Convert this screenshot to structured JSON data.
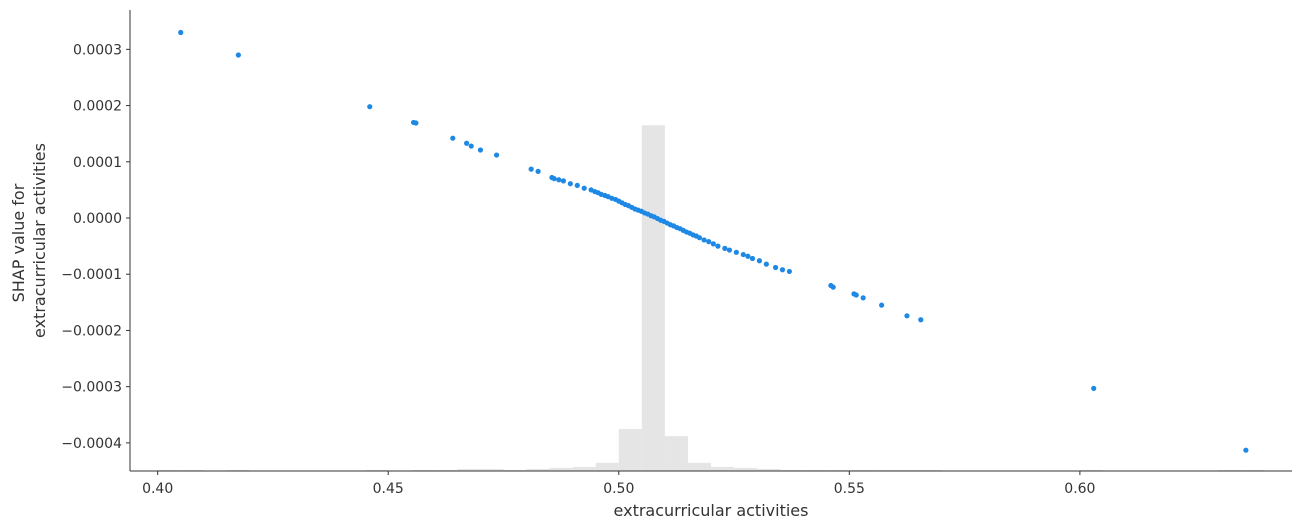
{
  "chart_data": {
    "type": "scatter",
    "xlabel": "extracurricular activities",
    "ylabel_lines": [
      "SHAP value for",
      "extracurricular activities"
    ],
    "xlim": [
      0.394,
      0.646
    ],
    "ylim": [
      -0.00045,
      0.00037
    ],
    "x_ticks": [
      0.4,
      0.45,
      0.5,
      0.55,
      0.6
    ],
    "x_tick_labels": [
      "0.40",
      "0.45",
      "0.50",
      "0.55",
      "0.60"
    ],
    "y_ticks": [
      0.0003,
      0.0002,
      0.0001,
      0.0,
      -0.0001,
      -0.0002,
      -0.0003,
      -0.0004
    ],
    "y_tick_labels": [
      "0.0003",
      "0.0002",
      "0.0001",
      "0.0000",
      "−0.0001",
      "−0.0002",
      "−0.0003",
      "−0.0004"
    ],
    "grid": false,
    "colors": {
      "points": "#1e88e5",
      "histogram": "#e5e5e5",
      "axis": "#333333"
    },
    "points": {
      "x": [
        0.405,
        0.4175,
        0.446,
        0.4555,
        0.456,
        0.464,
        0.467,
        0.468,
        0.47,
        0.4735,
        0.481,
        0.4825,
        0.4855,
        0.486,
        0.487,
        0.488,
        0.4895,
        0.491,
        0.4925,
        0.494,
        0.4948,
        0.4955,
        0.4962,
        0.497,
        0.4977,
        0.4985,
        0.4993,
        0.5,
        0.5007,
        0.5014,
        0.5021,
        0.5028,
        0.5035,
        0.5042,
        0.5049,
        0.5056,
        0.5063,
        0.507,
        0.5077,
        0.5084,
        0.5091,
        0.5098,
        0.5105,
        0.5112,
        0.5119,
        0.5126,
        0.5133,
        0.514,
        0.5147,
        0.5154,
        0.5161,
        0.5168,
        0.5175,
        0.5185,
        0.5195,
        0.5205,
        0.5215,
        0.523,
        0.524,
        0.5255,
        0.527,
        0.528,
        0.529,
        0.5305,
        0.532,
        0.534,
        0.5355,
        0.537,
        0.546,
        0.5465,
        0.551,
        0.5515,
        0.553,
        0.557,
        0.5625,
        0.5655,
        0.603,
        0.636
      ],
      "y": [
        0.00033,
        0.00029,
        0.000198,
        0.00017,
        0.000169,
        0.000142,
        0.000133,
        0.000128,
        0.000121,
        0.000112,
        8.7e-05,
        8.3e-05,
        7.2e-05,
        7e-05,
        6.8e-05,
        6.6e-05,
        6.1e-05,
        5.8e-05,
        5.3e-05,
        5e-05,
        4.7e-05,
        4.5e-05,
        4.2e-05,
        4e-05,
        3.8e-05,
        3.5e-05,
        3.3e-05,
        3e-05,
        2.7e-05,
        2.4e-05,
        2.2e-05,
        1.9e-05,
        1.6e-05,
        1.4e-05,
        1.2e-05,
        9e-06,
        7e-06,
        4e-06,
        2e-06,
        -1e-06,
        -4e-06,
        -6e-06,
        -9e-06,
        -1.2e-05,
        -1.4e-05,
        -1.7e-05,
        -1.9e-05,
        -2.2e-05,
        -2.5e-05,
        -2.7e-05,
        -3e-05,
        -3.2e-05,
        -3.5e-05,
        -3.9e-05,
        -4.2e-05,
        -4.6e-05,
        -5e-05,
        -5.4e-05,
        -5.7e-05,
        -6.1e-05,
        -6.5e-05,
        -6.8e-05,
        -7.2e-05,
        -7.6e-05,
        -8.2e-05,
        -8.8e-05,
        -9.2e-05,
        -9.5e-05,
        -0.00012,
        -0.000123,
        -0.000135,
        -0.000137,
        -0.000142,
        -0.000155,
        -0.000174,
        -0.000181,
        -0.000303,
        -0.000413
      ]
    },
    "histogram": {
      "bin_edges": [
        0.395,
        0.4,
        0.405,
        0.41,
        0.415,
        0.42,
        0.425,
        0.43,
        0.435,
        0.44,
        0.445,
        0.45,
        0.455,
        0.46,
        0.465,
        0.47,
        0.475,
        0.48,
        0.485,
        0.49,
        0.495,
        0.5,
        0.505,
        0.51,
        0.515,
        0.52,
        0.525,
        0.53,
        0.535,
        0.54,
        0.545,
        0.55,
        0.555,
        0.56,
        0.565,
        0.57,
        0.575,
        0.58,
        0.585,
        0.59,
        0.595,
        0.6,
        0.605,
        0.61,
        0.615,
        0.62,
        0.625,
        0.63,
        0.635,
        0.64
      ],
      "counts": [
        0,
        1,
        1,
        0,
        1,
        0,
        0,
        0,
        0,
        0,
        1,
        0,
        1,
        1,
        2,
        2,
        1,
        2,
        3,
        4,
        8,
        41,
        337,
        34,
        8,
        4,
        3,
        2,
        1,
        1,
        1,
        1,
        1,
        1,
        1,
        0,
        0,
        0,
        0,
        0,
        0,
        1,
        0,
        0,
        0,
        0,
        0,
        1,
        1
      ]
    }
  }
}
